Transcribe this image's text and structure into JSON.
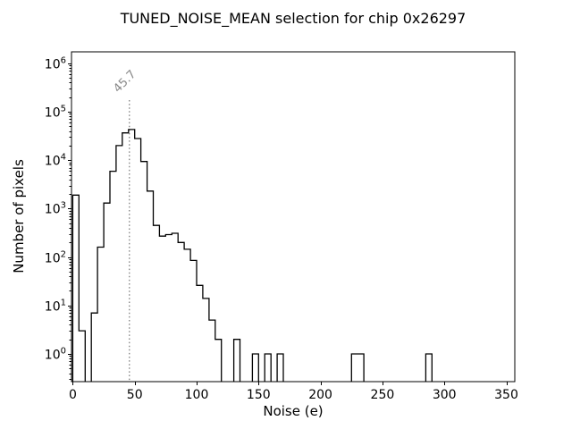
{
  "chart_data": {
    "type": "histogram",
    "title": "TUNED_NOISE_MEAN selection for chip 0x26297",
    "xlabel": "Noise (e)",
    "ylabel": "Number of pixels",
    "yscale": "log",
    "grid": false,
    "legend": null,
    "x_ticks": [
      0,
      50,
      100,
      150,
      200,
      250,
      300,
      350
    ],
    "y_ticks_exponents": [
      0,
      1,
      2,
      3,
      4,
      5,
      6
    ],
    "xlim": [
      -0.7,
      357.1
    ],
    "ylim": [
      0.27,
      1720000
    ],
    "line_color": "#000000",
    "annotation": {
      "x": 45.7,
      "label": "45.7",
      "color": "#8a8a8a",
      "style": "dotted"
    },
    "bins": [
      {
        "x0": 0,
        "x1": 5,
        "count": 1900
      },
      {
        "x0": 5,
        "x1": 10,
        "count": 3
      },
      {
        "x0": 15,
        "x1": 20,
        "count": 7
      },
      {
        "x0": 20,
        "x1": 25,
        "count": 160
      },
      {
        "x0": 25,
        "x1": 30,
        "count": 1300
      },
      {
        "x0": 30,
        "x1": 35,
        "count": 5900
      },
      {
        "x0": 35,
        "x1": 40,
        "count": 20000
      },
      {
        "x0": 40,
        "x1": 45,
        "count": 36500
      },
      {
        "x0": 45,
        "x1": 50,
        "count": 43000
      },
      {
        "x0": 50,
        "x1": 55,
        "count": 28000
      },
      {
        "x0": 55,
        "x1": 60,
        "count": 9400
      },
      {
        "x0": 60,
        "x1": 65,
        "count": 2300
      },
      {
        "x0": 65,
        "x1": 70,
        "count": 450
      },
      {
        "x0": 70,
        "x1": 75,
        "count": 270
      },
      {
        "x0": 75,
        "x1": 80,
        "count": 290
      },
      {
        "x0": 80,
        "x1": 85,
        "count": 310
      },
      {
        "x0": 85,
        "x1": 90,
        "count": 200
      },
      {
        "x0": 90,
        "x1": 95,
        "count": 145
      },
      {
        "x0": 95,
        "x1": 100,
        "count": 85
      },
      {
        "x0": 100,
        "x1": 105,
        "count": 26
      },
      {
        "x0": 105,
        "x1": 110,
        "count": 14
      },
      {
        "x0": 110,
        "x1": 115,
        "count": 5
      },
      {
        "x0": 115,
        "x1": 120,
        "count": 2
      },
      {
        "x0": 130,
        "x1": 135,
        "count": 2
      },
      {
        "x0": 145,
        "x1": 150,
        "count": 1
      },
      {
        "x0": 155,
        "x1": 160,
        "count": 1
      },
      {
        "x0": 165,
        "x1": 170,
        "count": 1
      },
      {
        "x0": 225,
        "x1": 235,
        "count": 1
      },
      {
        "x0": 285,
        "x1": 290,
        "count": 1
      }
    ]
  }
}
